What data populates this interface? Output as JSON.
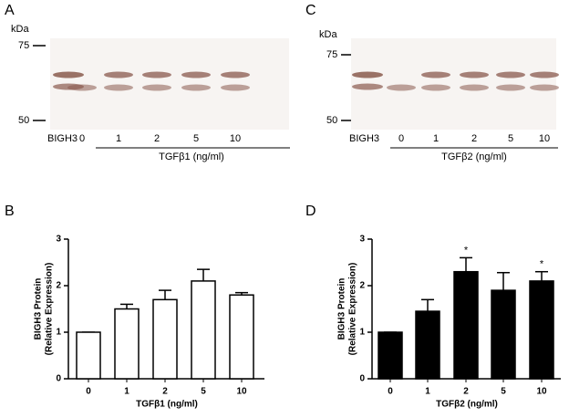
{
  "blots": [
    {
      "letter": "A",
      "unit": "kDa",
      "markers": [
        "75",
        "50"
      ],
      "row_label": "BIGH3",
      "lanes": [
        "0",
        "1",
        "2",
        "5",
        "10"
      ],
      "treatment": "TGFβ1 (ng/ml)"
    },
    {
      "letter": "C",
      "unit": "kDa",
      "markers": [
        "75",
        "50"
      ],
      "row_label": "BIGH3",
      "lanes": [
        "0",
        "1",
        "2",
        "5",
        "10"
      ],
      "treatment": "TGFβ2 (ng/ml)"
    }
  ],
  "chart_data": [
    {
      "type": "bar",
      "letter": "B",
      "ylabel": [
        "BIGH3 Protein",
        "(Relative Expression)"
      ],
      "xlabel": "TGFβ1 (ng/ml)",
      "categories": [
        "0",
        "1",
        "2",
        "5",
        "10"
      ],
      "values": [
        1,
        1.5,
        1.7,
        2.1,
        1.8
      ],
      "errors": [
        0,
        0.1,
        0.2,
        0.25,
        0.05
      ],
      "color": "#ffffff",
      "ylim": [
        0,
        3
      ],
      "yticks": [
        0,
        1,
        2,
        3
      ]
    },
    {
      "type": "bar",
      "letter": "D",
      "ylabel": [
        "BIGH3 Protein",
        "(Relative Expression)"
      ],
      "xlabel": "TGFβ2 (ng/ml)",
      "categories": [
        "0",
        "1",
        "2",
        "5",
        "10"
      ],
      "values": [
        1,
        1.45,
        2.3,
        1.9,
        2.1
      ],
      "errors": [
        0,
        0.25,
        0.3,
        0.38,
        0.2
      ],
      "significance": [
        null,
        null,
        "*",
        null,
        "*"
      ],
      "color": "#000000",
      "ylim": [
        0,
        3
      ],
      "yticks": [
        0,
        1,
        2,
        3
      ]
    }
  ]
}
